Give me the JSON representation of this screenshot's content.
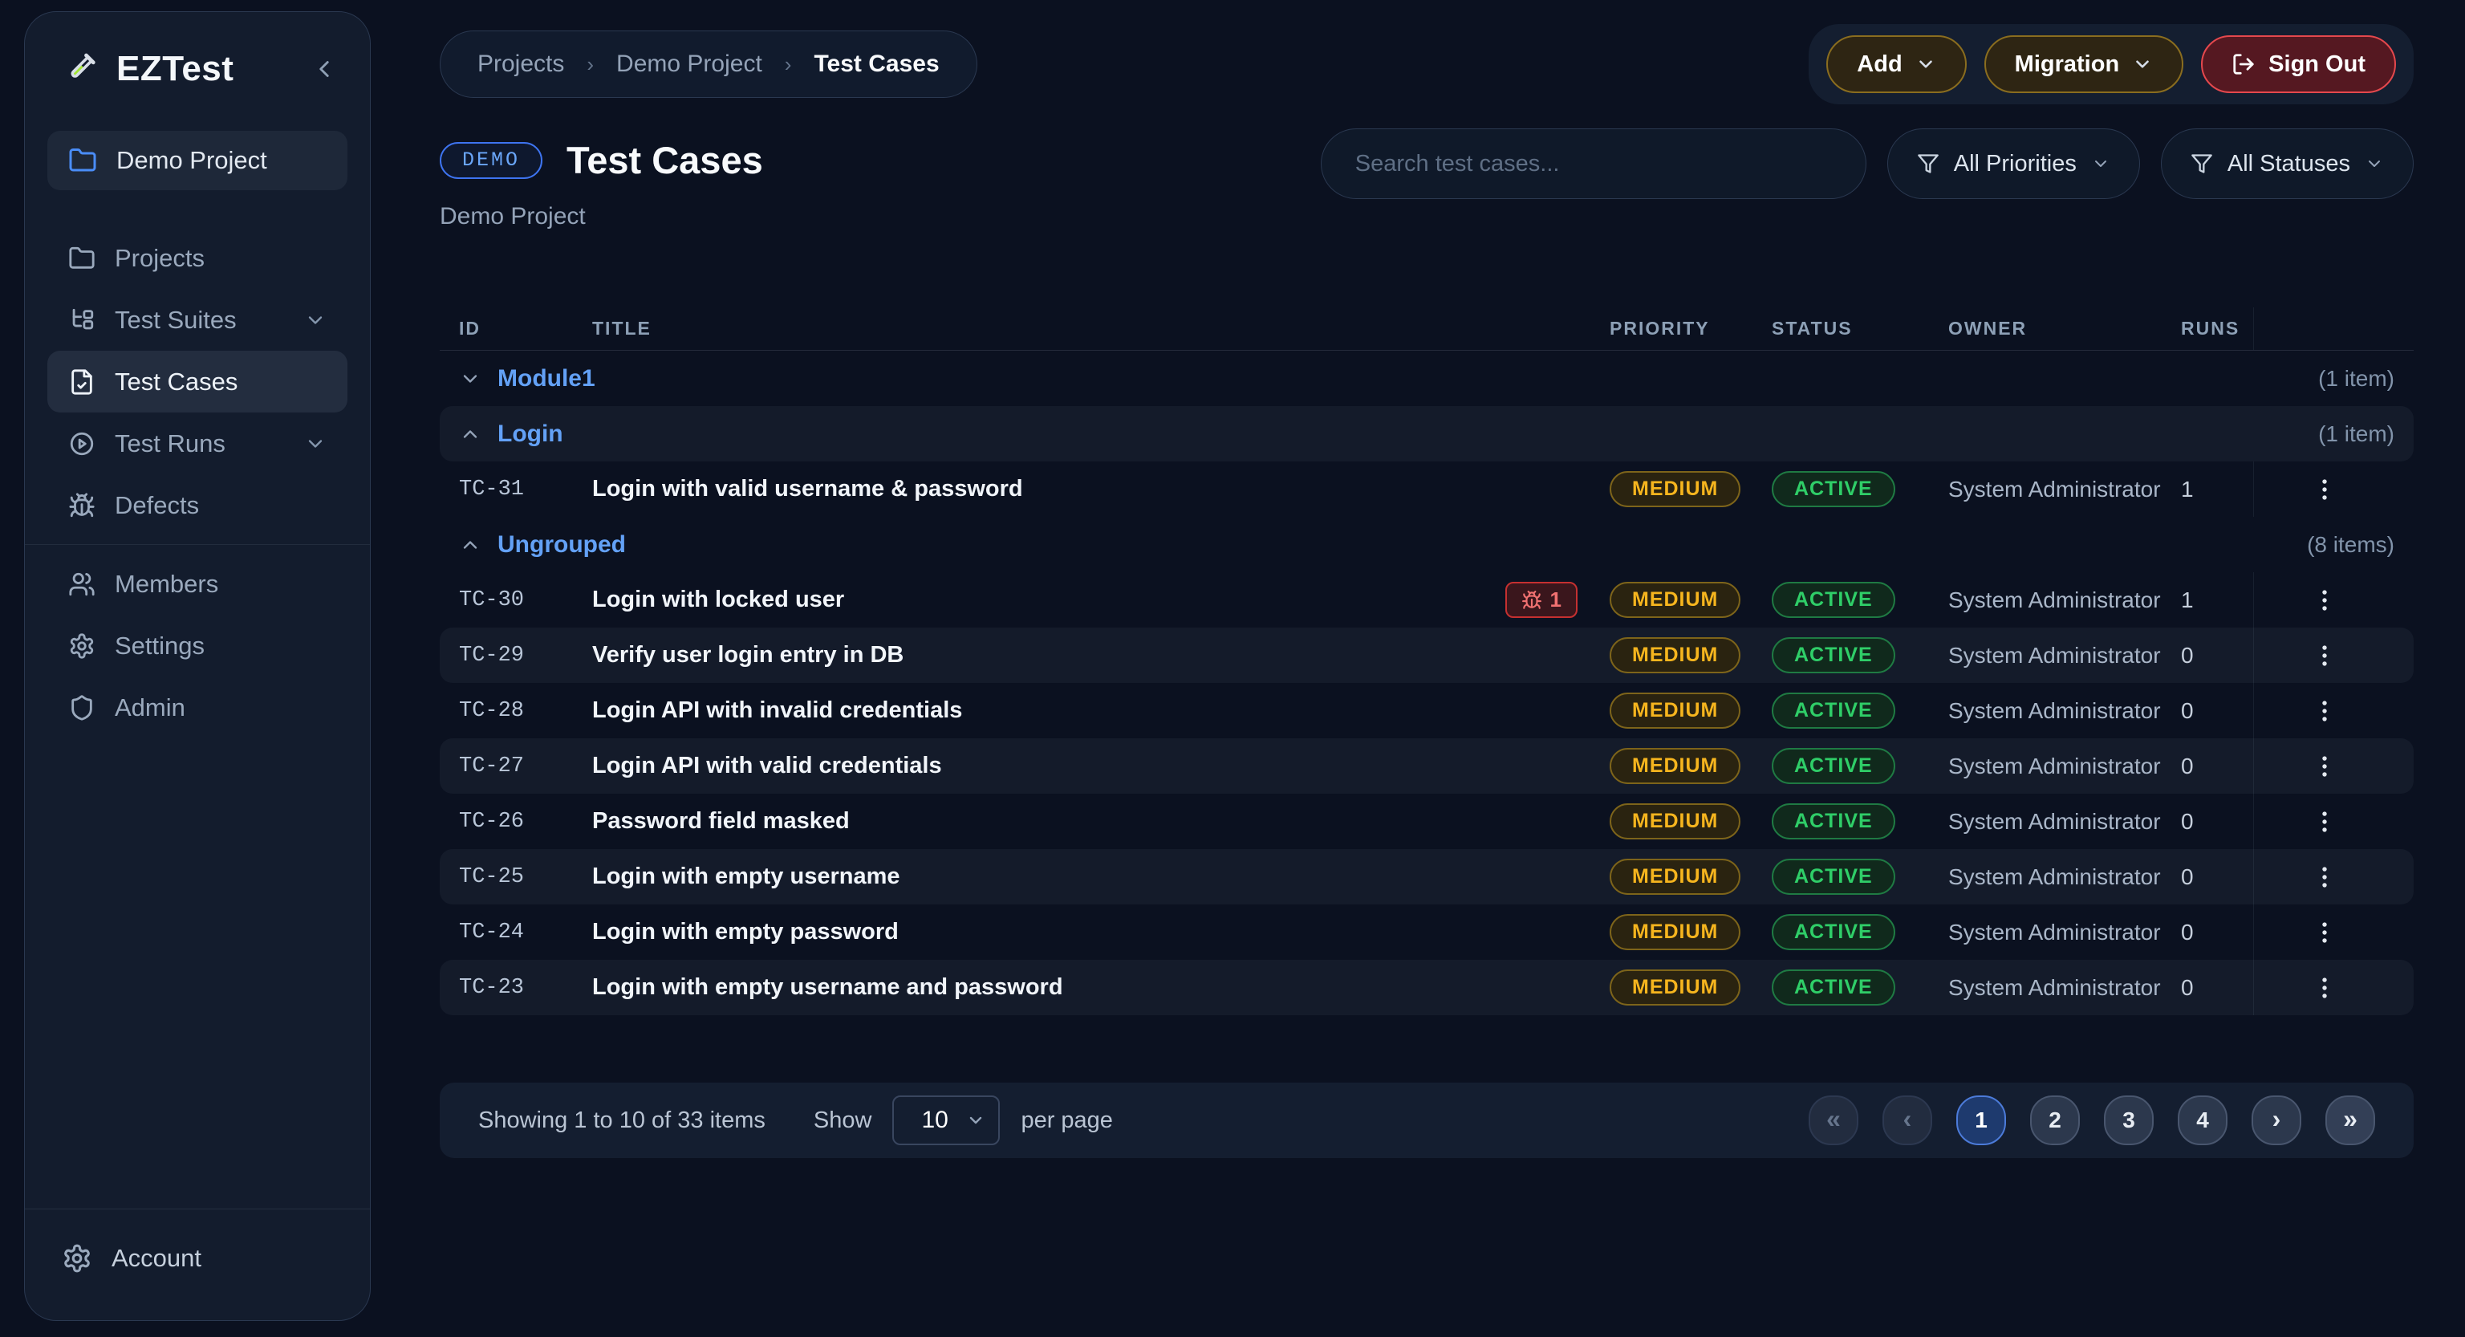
{
  "app": {
    "name": "EZTest"
  },
  "colors": {
    "accent_blue": "#3E74F0",
    "group_link_blue": "#63A1F6",
    "priority_medium_amber": "#F6B51E",
    "status_active_green": "#2FCE68",
    "defect_red": "#F07171",
    "signout_border_red": "#E5484D",
    "amber_button_border": "#8A6D1F",
    "sidebar_bg": "#131C2D",
    "page_bg": "#0B1120"
  },
  "sidebar": {
    "project_item": {
      "label": "Demo Project",
      "icon": "folder"
    },
    "items": [
      {
        "label": "Projects",
        "icon": "folder",
        "active": false,
        "chevron": null,
        "divider_after": false
      },
      {
        "label": "Test Suites",
        "icon": "tree",
        "active": false,
        "chevron": "down",
        "divider_after": false
      },
      {
        "label": "Test Cases",
        "icon": "file-check",
        "active": true,
        "chevron": null,
        "divider_after": false
      },
      {
        "label": "Test Runs",
        "icon": "play-circle",
        "active": false,
        "chevron": "down",
        "divider_after": false
      },
      {
        "label": "Defects",
        "icon": "bug",
        "active": false,
        "chevron": null,
        "divider_after": true
      },
      {
        "label": "Members",
        "icon": "users",
        "active": false,
        "chevron": null,
        "divider_after": false
      },
      {
        "label": "Settings",
        "icon": "settings",
        "active": false,
        "chevron": null,
        "divider_after": false
      },
      {
        "label": "Admin",
        "icon": "shield",
        "active": false,
        "chevron": null,
        "divider_after": false
      }
    ],
    "account_label": "Account"
  },
  "breadcrumb": {
    "items": [
      "Projects",
      "Demo Project",
      "Test Cases"
    ],
    "separator": "›"
  },
  "top_actions": {
    "add_label": "Add",
    "migration_label": "Migration",
    "signout_label": "Sign Out"
  },
  "page": {
    "badge": "DEMO",
    "title": "Test Cases",
    "subtitle": "Demo Project"
  },
  "search": {
    "placeholder": "Search test cases..."
  },
  "filters": [
    {
      "label": "All Priorities"
    },
    {
      "label": "All Statuses"
    }
  ],
  "table": {
    "columns": [
      "ID",
      "TITLE",
      "PRIORITY",
      "STATUS",
      "OWNER",
      "RUNS"
    ],
    "rows": [
      {
        "type": "group",
        "label": "Module1",
        "count_label": "(1 item)",
        "chevron": "down",
        "shaded": false
      },
      {
        "type": "group",
        "label": "Login",
        "count_label": "(1 item)",
        "chevron": "up",
        "shaded": true
      },
      {
        "type": "case",
        "id": "TC-31",
        "title": "Login with valid username & password",
        "defects": null,
        "priority": "MEDIUM",
        "status": "ACTIVE",
        "owner": "System Administrator",
        "runs": "1",
        "shaded": false
      },
      {
        "type": "group",
        "label": "Ungrouped",
        "count_label": "(8 items)",
        "chevron": "up",
        "shaded": false
      },
      {
        "type": "case",
        "id": "TC-30",
        "title": "Login with locked user",
        "defects": "1",
        "priority": "MEDIUM",
        "status": "ACTIVE",
        "owner": "System Administrator",
        "runs": "1",
        "shaded": false
      },
      {
        "type": "case",
        "id": "TC-29",
        "title": "Verify user login entry in DB",
        "defects": null,
        "priority": "MEDIUM",
        "status": "ACTIVE",
        "owner": "System Administrator",
        "runs": "0",
        "shaded": true
      },
      {
        "type": "case",
        "id": "TC-28",
        "title": "Login API with invalid credentials",
        "defects": null,
        "priority": "MEDIUM",
        "status": "ACTIVE",
        "owner": "System Administrator",
        "runs": "0",
        "shaded": false
      },
      {
        "type": "case",
        "id": "TC-27",
        "title": "Login API with valid credentials",
        "defects": null,
        "priority": "MEDIUM",
        "status": "ACTIVE",
        "owner": "System Administrator",
        "runs": "0",
        "shaded": true
      },
      {
        "type": "case",
        "id": "TC-26",
        "title": "Password field masked",
        "defects": null,
        "priority": "MEDIUM",
        "status": "ACTIVE",
        "owner": "System Administrator",
        "runs": "0",
        "shaded": false
      },
      {
        "type": "case",
        "id": "TC-25",
        "title": "Login with empty username",
        "defects": null,
        "priority": "MEDIUM",
        "status": "ACTIVE",
        "owner": "System Administrator",
        "runs": "0",
        "shaded": true
      },
      {
        "type": "case",
        "id": "TC-24",
        "title": "Login with empty password",
        "defects": null,
        "priority": "MEDIUM",
        "status": "ACTIVE",
        "owner": "System Administrator",
        "runs": "0",
        "shaded": false
      },
      {
        "type": "case",
        "id": "TC-23",
        "title": "Login with empty username and password",
        "defects": null,
        "priority": "MEDIUM",
        "status": "ACTIVE",
        "owner": "System Administrator",
        "runs": "0",
        "shaded": true
      }
    ]
  },
  "pagination": {
    "summary": "Showing 1 to 10 of 33 items",
    "show_label": "Show",
    "per_page_value": "10",
    "per_page_label": "per page",
    "first_symbol": "«",
    "prev_symbol": "‹",
    "pages": [
      "1",
      "2",
      "3",
      "4"
    ],
    "active_page": "1",
    "next_symbol": "›",
    "last_symbol": "»"
  }
}
